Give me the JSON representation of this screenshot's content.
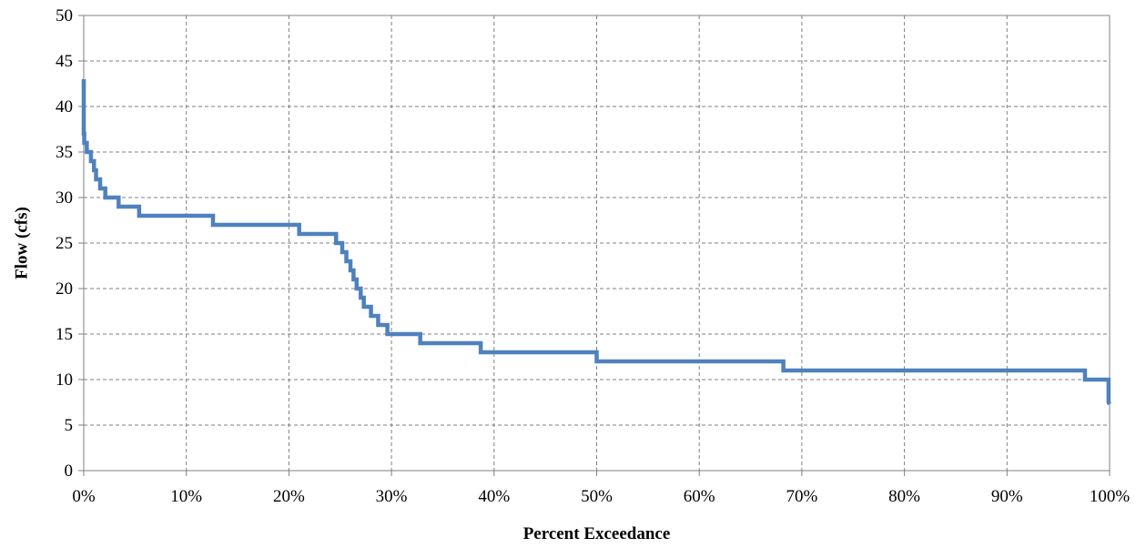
{
  "chart_data": {
    "type": "line",
    "title": "",
    "xlabel": "Percent Exceedance",
    "ylabel": "Flow (cfs)",
    "xlim": [
      0,
      100
    ],
    "ylim": [
      0,
      50
    ],
    "grid": true,
    "x_ticks": [
      "0%",
      "10%",
      "20%",
      "30%",
      "40%",
      "50%",
      "60%",
      "70%",
      "80%",
      "90%",
      "100%"
    ],
    "y_ticks": [
      "0",
      "5",
      "10",
      "15",
      "20",
      "25",
      "30",
      "35",
      "40",
      "45",
      "50"
    ],
    "series": [
      {
        "color": "#4f81bd",
        "x": [
          0,
          0,
          0.05,
          0.05,
          0.3,
          0.3,
          0.7,
          0.7,
          1.0,
          1.0,
          1.2,
          1.2,
          1.6,
          1.6,
          2.1,
          2.1,
          3.4,
          3.4,
          5.4,
          5.4,
          7.2,
          7.2,
          12.6,
          12.6,
          21.0,
          21.0,
          24.6,
          24.6,
          25.2,
          25.2,
          25.6,
          25.6,
          26.0,
          26.0,
          26.3,
          26.3,
          26.6,
          26.6,
          27.0,
          27.0,
          27.3,
          27.3,
          28.0,
          28.0,
          28.7,
          28.7,
          29.6,
          29.6,
          32.8,
          32.8,
          38.7,
          38.7,
          50.0,
          50.0,
          68.2,
          68.2,
          97.6,
          97.6,
          99.9,
          99.9,
          100.0
        ],
        "y": [
          43,
          37,
          37,
          36,
          36,
          35,
          35,
          34,
          34,
          33,
          33,
          32,
          32,
          31,
          31,
          30,
          30,
          29,
          29,
          28,
          28,
          28,
          28,
          27,
          27,
          26,
          26,
          25,
          25,
          24,
          24,
          23,
          23,
          22,
          22,
          21,
          21,
          20,
          20,
          19,
          19,
          18,
          18,
          17,
          17,
          16,
          16,
          15,
          15,
          14,
          14,
          13,
          13,
          12,
          12,
          11,
          11,
          10,
          10,
          7.5,
          7.3
        ]
      }
    ]
  }
}
